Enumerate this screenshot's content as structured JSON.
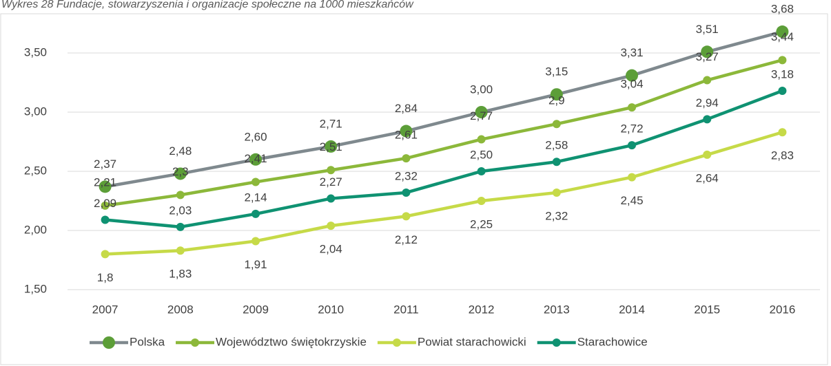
{
  "chart_data": {
    "type": "line",
    "title": "Wykres 28 Fundacje, stowarzyszenia i organizacje społeczne na 1000 mieszkańców",
    "categories": [
      "2007",
      "2008",
      "2009",
      "2010",
      "2011",
      "2012",
      "2013",
      "2014",
      "2015",
      "2016"
    ],
    "series": [
      {
        "name": "Polska",
        "color": "#7f898e",
        "marker_color": "#5c9e38",
        "values": [
          2.37,
          2.48,
          2.6,
          2.71,
          2.84,
          3.0,
          3.15,
          3.31,
          3.51,
          3.68
        ],
        "value_labels": [
          "2,37",
          "2,48",
          "2,60",
          "2,71",
          "2,84",
          "3,00",
          "3,15",
          "3,31",
          "3,51",
          "3,68"
        ]
      },
      {
        "name": "Województwo świętokrzyskie",
        "color": "#8cb83a",
        "marker_color": "#8cb83a",
        "values": [
          2.21,
          2.3,
          2.41,
          2.51,
          2.61,
          2.77,
          2.9,
          3.04,
          3.27,
          3.44
        ],
        "value_labels": [
          "2,21",
          "2,3",
          "2,41",
          "2,51",
          "2,61",
          "2,77",
          "2,9",
          "3,04",
          "3,27",
          "3,44"
        ]
      },
      {
        "name": "Powiat starachowicki",
        "color": "#c6da48",
        "marker_color": "#c6da48",
        "values": [
          1.8,
          1.83,
          1.91,
          2.04,
          2.12,
          2.25,
          2.32,
          2.45,
          2.64,
          2.83
        ],
        "value_labels": [
          "1,8",
          "1,83",
          "1,91",
          "2,04",
          "2,12",
          "2,25",
          "2,32",
          "2,45",
          "2,64",
          "2,83"
        ]
      },
      {
        "name": "Starachowice",
        "color": "#0f9272",
        "marker_color": "#0f9272",
        "values": [
          2.09,
          2.03,
          2.14,
          2.27,
          2.32,
          2.5,
          2.58,
          2.72,
          2.94,
          3.18
        ],
        "value_labels": [
          "2,09",
          "2,03",
          "2,14",
          "2,27",
          "2,32",
          "2,50",
          "2,58",
          "2,72",
          "2,94",
          "3,18"
        ]
      }
    ],
    "ylim": [
      1.5,
      3.75
    ],
    "yticks": [
      {
        "value": 1.5,
        "label": "1,50"
      },
      {
        "value": 2.0,
        "label": "2,00"
      },
      {
        "value": 2.5,
        "label": "2,50"
      },
      {
        "value": 3.0,
        "label": "3,00"
      },
      {
        "value": 3.5,
        "label": "3,50"
      }
    ],
    "grid": true,
    "legend": "bottom"
  }
}
